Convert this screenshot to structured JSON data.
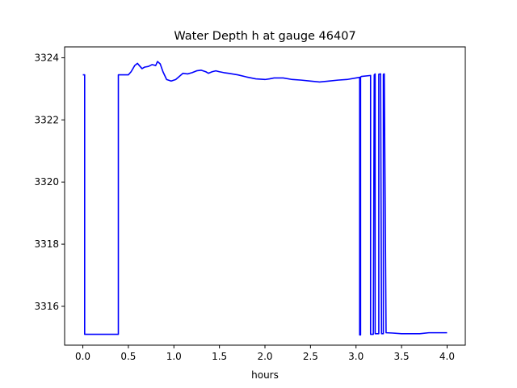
{
  "chart_data": {
    "type": "line",
    "title": "Water Depth h at gauge 46407",
    "xlabel": "hours",
    "ylabel": "",
    "xlim": [
      -0.2,
      4.2
    ],
    "ylim": [
      3314.75,
      3324.35
    ],
    "xticks": [
      0.0,
      0.5,
      1.0,
      1.5,
      2.0,
      2.5,
      3.0,
      3.5,
      4.0
    ],
    "xtick_labels": [
      "0.0",
      "0.5",
      "1.0",
      "1.5",
      "2.0",
      "2.5",
      "3.0",
      "3.5",
      "4.0"
    ],
    "yticks": [
      3316,
      3318,
      3320,
      3322,
      3324
    ],
    "ytick_labels": [
      "3316",
      "3318",
      "3320",
      "3322",
      "3324"
    ],
    "grid": false,
    "series": [
      {
        "color": "#0000ff",
        "x": [
          0.0,
          0.02,
          0.02,
          0.1,
          0.2,
          0.3,
          0.39,
          0.39,
          0.45,
          0.5,
          0.53,
          0.57,
          0.6,
          0.62,
          0.65,
          0.68,
          0.72,
          0.76,
          0.8,
          0.82,
          0.85,
          0.88,
          0.92,
          0.97,
          1.02,
          1.06,
          1.1,
          1.15,
          1.2,
          1.25,
          1.3,
          1.35,
          1.38,
          1.42,
          1.46,
          1.5,
          1.55,
          1.6,
          1.7,
          1.8,
          1.9,
          2.0,
          2.05,
          2.1,
          2.2,
          2.3,
          2.4,
          2.5,
          2.6,
          2.7,
          2.8,
          2.9,
          3.0,
          3.04,
          3.04,
          3.05,
          3.05,
          3.06,
          3.16,
          3.16,
          3.17,
          3.19,
          3.2,
          3.21,
          3.21,
          3.22,
          3.25,
          3.25,
          3.27,
          3.28,
          3.29,
          3.3,
          3.3,
          3.31,
          3.33,
          3.4,
          3.5,
          3.6,
          3.7,
          3.8,
          3.9,
          4.0
        ],
        "y": [
          3323.45,
          3323.45,
          3315.1,
          3315.1,
          3315.1,
          3315.1,
          3315.1,
          3323.45,
          3323.45,
          3323.45,
          3323.55,
          3323.75,
          3323.82,
          3323.75,
          3323.65,
          3323.7,
          3323.72,
          3323.78,
          3323.75,
          3323.88,
          3323.8,
          3323.55,
          3323.3,
          3323.25,
          3323.3,
          3323.4,
          3323.5,
          3323.48,
          3323.52,
          3323.58,
          3323.6,
          3323.55,
          3323.5,
          3323.55,
          3323.58,
          3323.55,
          3323.52,
          3323.5,
          3323.45,
          3323.38,
          3323.32,
          3323.3,
          3323.32,
          3323.35,
          3323.35,
          3323.3,
          3323.28,
          3323.25,
          3323.22,
          3323.25,
          3323.28,
          3323.3,
          3323.35,
          3323.37,
          3315.08,
          3315.08,
          3323.38,
          3323.4,
          3323.43,
          3315.1,
          3315.1,
          3315.1,
          3323.45,
          3323.48,
          3315.12,
          3315.12,
          3315.12,
          3323.47,
          3323.48,
          3315.12,
          3315.12,
          3315.12,
          3323.47,
          3323.48,
          3315.15,
          3315.14,
          3315.12,
          3315.12,
          3315.12,
          3315.15,
          3315.15,
          3315.15
        ]
      }
    ]
  }
}
